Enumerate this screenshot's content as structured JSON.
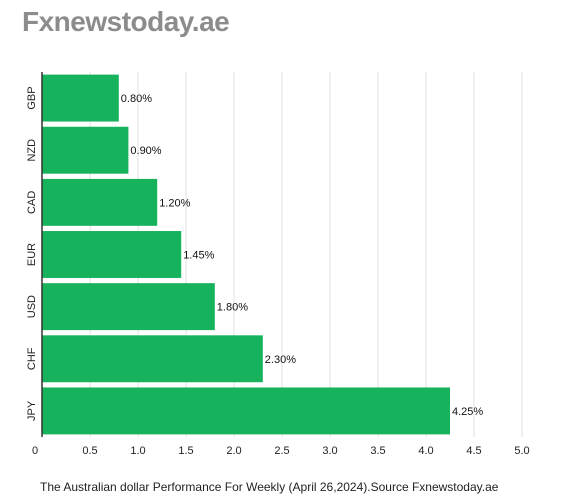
{
  "brand": {
    "title": "Fxnewstoday.ae"
  },
  "caption": "The Australian dollar Performance For Weekly (April 26,2024).Source Fxnewstoday.ae",
  "colors": {
    "bar": "#16b25c",
    "grid": "#e2e2e2",
    "axis": "#333333",
    "brand": "#8c8c8c"
  },
  "chart_data": {
    "type": "bar",
    "orientation": "horizontal",
    "categories": [
      "GBP",
      "NZD",
      "CAD",
      "EUR",
      "USD",
      "CHF",
      "JPY"
    ],
    "values": [
      0.8,
      0.9,
      1.2,
      1.45,
      1.8,
      2.3,
      4.25
    ],
    "data_labels": [
      "0.80%",
      "0.90%",
      "1.20%",
      "1.45%",
      "1.80%",
      "2.30%",
      "4.25%"
    ],
    "x_ticks": [
      "0",
      "0.5",
      "1.0",
      "1.5",
      "2.0",
      "2.5",
      "3.0",
      "3.5",
      "4.0",
      "4.5",
      "5.0"
    ],
    "xlim": [
      0,
      5.2
    ],
    "grid": true
  }
}
